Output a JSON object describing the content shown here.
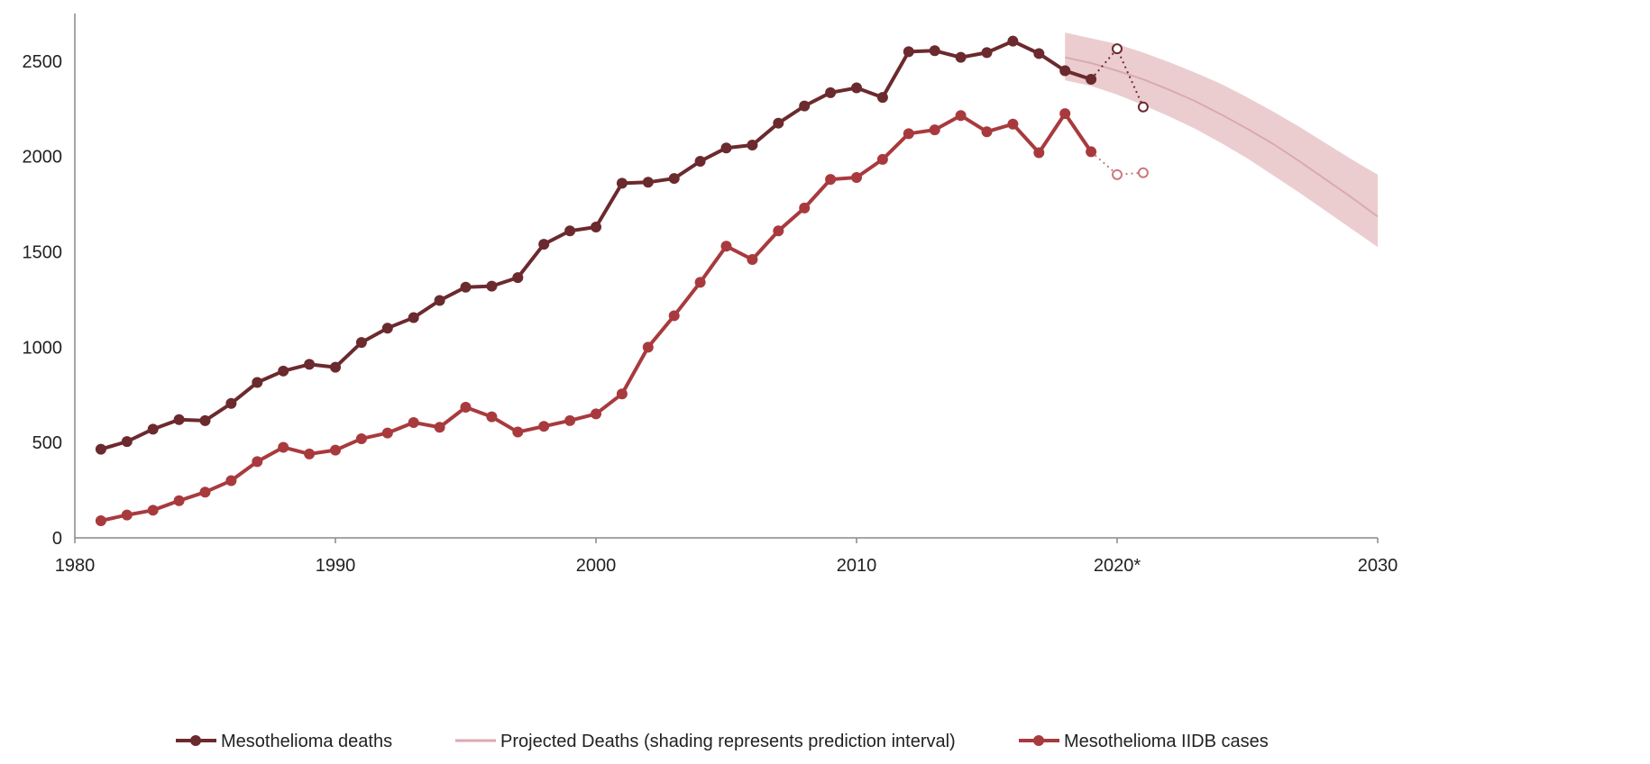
{
  "chart_data": {
    "type": "line",
    "title": "",
    "xlabel": "",
    "ylabel": "",
    "xlim": [
      1980,
      2030
    ],
    "ylim": [
      0,
      2750
    ],
    "grid": false,
    "x_ticks": [
      {
        "value": 1980,
        "label": "1980"
      },
      {
        "value": 1990,
        "label": "1990"
      },
      {
        "value": 2000,
        "label": "2000"
      },
      {
        "value": 2010,
        "label": "2010"
      },
      {
        "value": 2020,
        "label": "2020*"
      },
      {
        "value": 2030,
        "label": "2030"
      }
    ],
    "y_ticks": [
      {
        "value": 0,
        "label": "0"
      },
      {
        "value": 500,
        "label": "500"
      },
      {
        "value": 1000,
        "label": "1000"
      },
      {
        "value": 1500,
        "label": "1500"
      },
      {
        "value": 2000,
        "label": "2000"
      },
      {
        "value": 2500,
        "label": "2500"
      }
    ],
    "legend_position": "bottom",
    "series": [
      {
        "name": "Mesothelioma deaths",
        "color": "#6b2a2e",
        "x": [
          1981,
          1982,
          1983,
          1984,
          1985,
          1986,
          1987,
          1988,
          1989,
          1990,
          1991,
          1992,
          1993,
          1994,
          1995,
          1996,
          1997,
          1998,
          1999,
          2000,
          2001,
          2002,
          2003,
          2004,
          2005,
          2006,
          2007,
          2008,
          2009,
          2010,
          2011,
          2012,
          2013,
          2014,
          2015,
          2016,
          2017,
          2018,
          2019
        ],
        "values": [
          465,
          505,
          570,
          620,
          615,
          705,
          815,
          875,
          910,
          895,
          1025,
          1100,
          1155,
          1245,
          1315,
          1320,
          1365,
          1540,
          1610,
          1630,
          1860,
          1865,
          1885,
          1975,
          2045,
          2060,
          2175,
          2265,
          2335,
          2360,
          2310,
          2550,
          2555,
          2520,
          2545,
          2605,
          2540,
          2450,
          2405
        ],
        "provisional_x": [
          2019,
          2020,
          2021
        ],
        "provisional_values": [
          2405,
          2565,
          2260
        ]
      },
      {
        "name": "Projected Deaths (shading represents prediction interval)",
        "color": "#d9aab0",
        "band_color": "#e7c4c8",
        "x": [
          2018,
          2019,
          2020,
          2021,
          2022,
          2023,
          2024,
          2025,
          2026,
          2027,
          2028,
          2029,
          2030
        ],
        "values": [
          2520,
          2490,
          2450,
          2405,
          2350,
          2290,
          2220,
          2145,
          2065,
          1975,
          1880,
          1785,
          1685
        ],
        "lower": [
          2400,
          2370,
          2325,
          2270,
          2210,
          2145,
          2070,
          1990,
          1900,
          1810,
          1715,
          1620,
          1525
        ],
        "upper": [
          2650,
          2620,
          2590,
          2545,
          2495,
          2440,
          2380,
          2310,
          2235,
          2155,
          2070,
          1985,
          1905
        ]
      },
      {
        "name": "Mesothelioma IIDB cases",
        "color": "#a83a3e",
        "x": [
          1981,
          1982,
          1983,
          1984,
          1985,
          1986,
          1987,
          1988,
          1989,
          1990,
          1991,
          1992,
          1993,
          1994,
          1995,
          1996,
          1997,
          1998,
          1999,
          2000,
          2001,
          2002,
          2003,
          2004,
          2005,
          2006,
          2007,
          2008,
          2009,
          2010,
          2011,
          2012,
          2013,
          2014,
          2015,
          2016,
          2017,
          2018,
          2019
        ],
        "values": [
          90,
          120,
          145,
          195,
          240,
          300,
          400,
          475,
          440,
          460,
          520,
          550,
          605,
          580,
          685,
          635,
          555,
          585,
          615,
          650,
          755,
          1000,
          1165,
          1340,
          1530,
          1460,
          1610,
          1730,
          1880,
          1890,
          1985,
          2120,
          2140,
          2215,
          2130,
          2170,
          2020,
          2225,
          2025
        ],
        "provisional_x": [
          2019,
          2020,
          2021
        ],
        "provisional_values": [
          2025,
          1905,
          1915
        ]
      }
    ]
  }
}
